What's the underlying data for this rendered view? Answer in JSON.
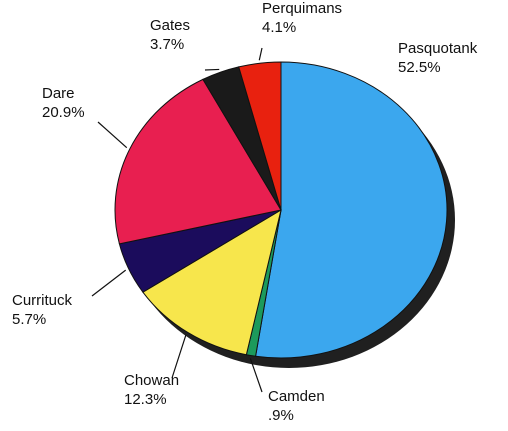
{
  "chart_data": {
    "type": "pie",
    "categories": [
      "Pasquotank",
      "Camden",
      "Chowan",
      "Currituck",
      "Dare",
      "Gates",
      "Perquimans"
    ],
    "values": [
      52.5,
      0.9,
      12.3,
      5.7,
      20.9,
      3.7,
      4.1
    ],
    "value_labels": [
      "52.5%",
      ".9%",
      "12.3%",
      "5.7%",
      "20.9%",
      "3.7%",
      "4.1%"
    ],
    "colors": [
      "#3ba7ee",
      "#1c9a5c",
      "#f7e64c",
      "#1b0c5c",
      "#e81f50",
      "#1a1a1a",
      "#e8210f"
    ]
  }
}
